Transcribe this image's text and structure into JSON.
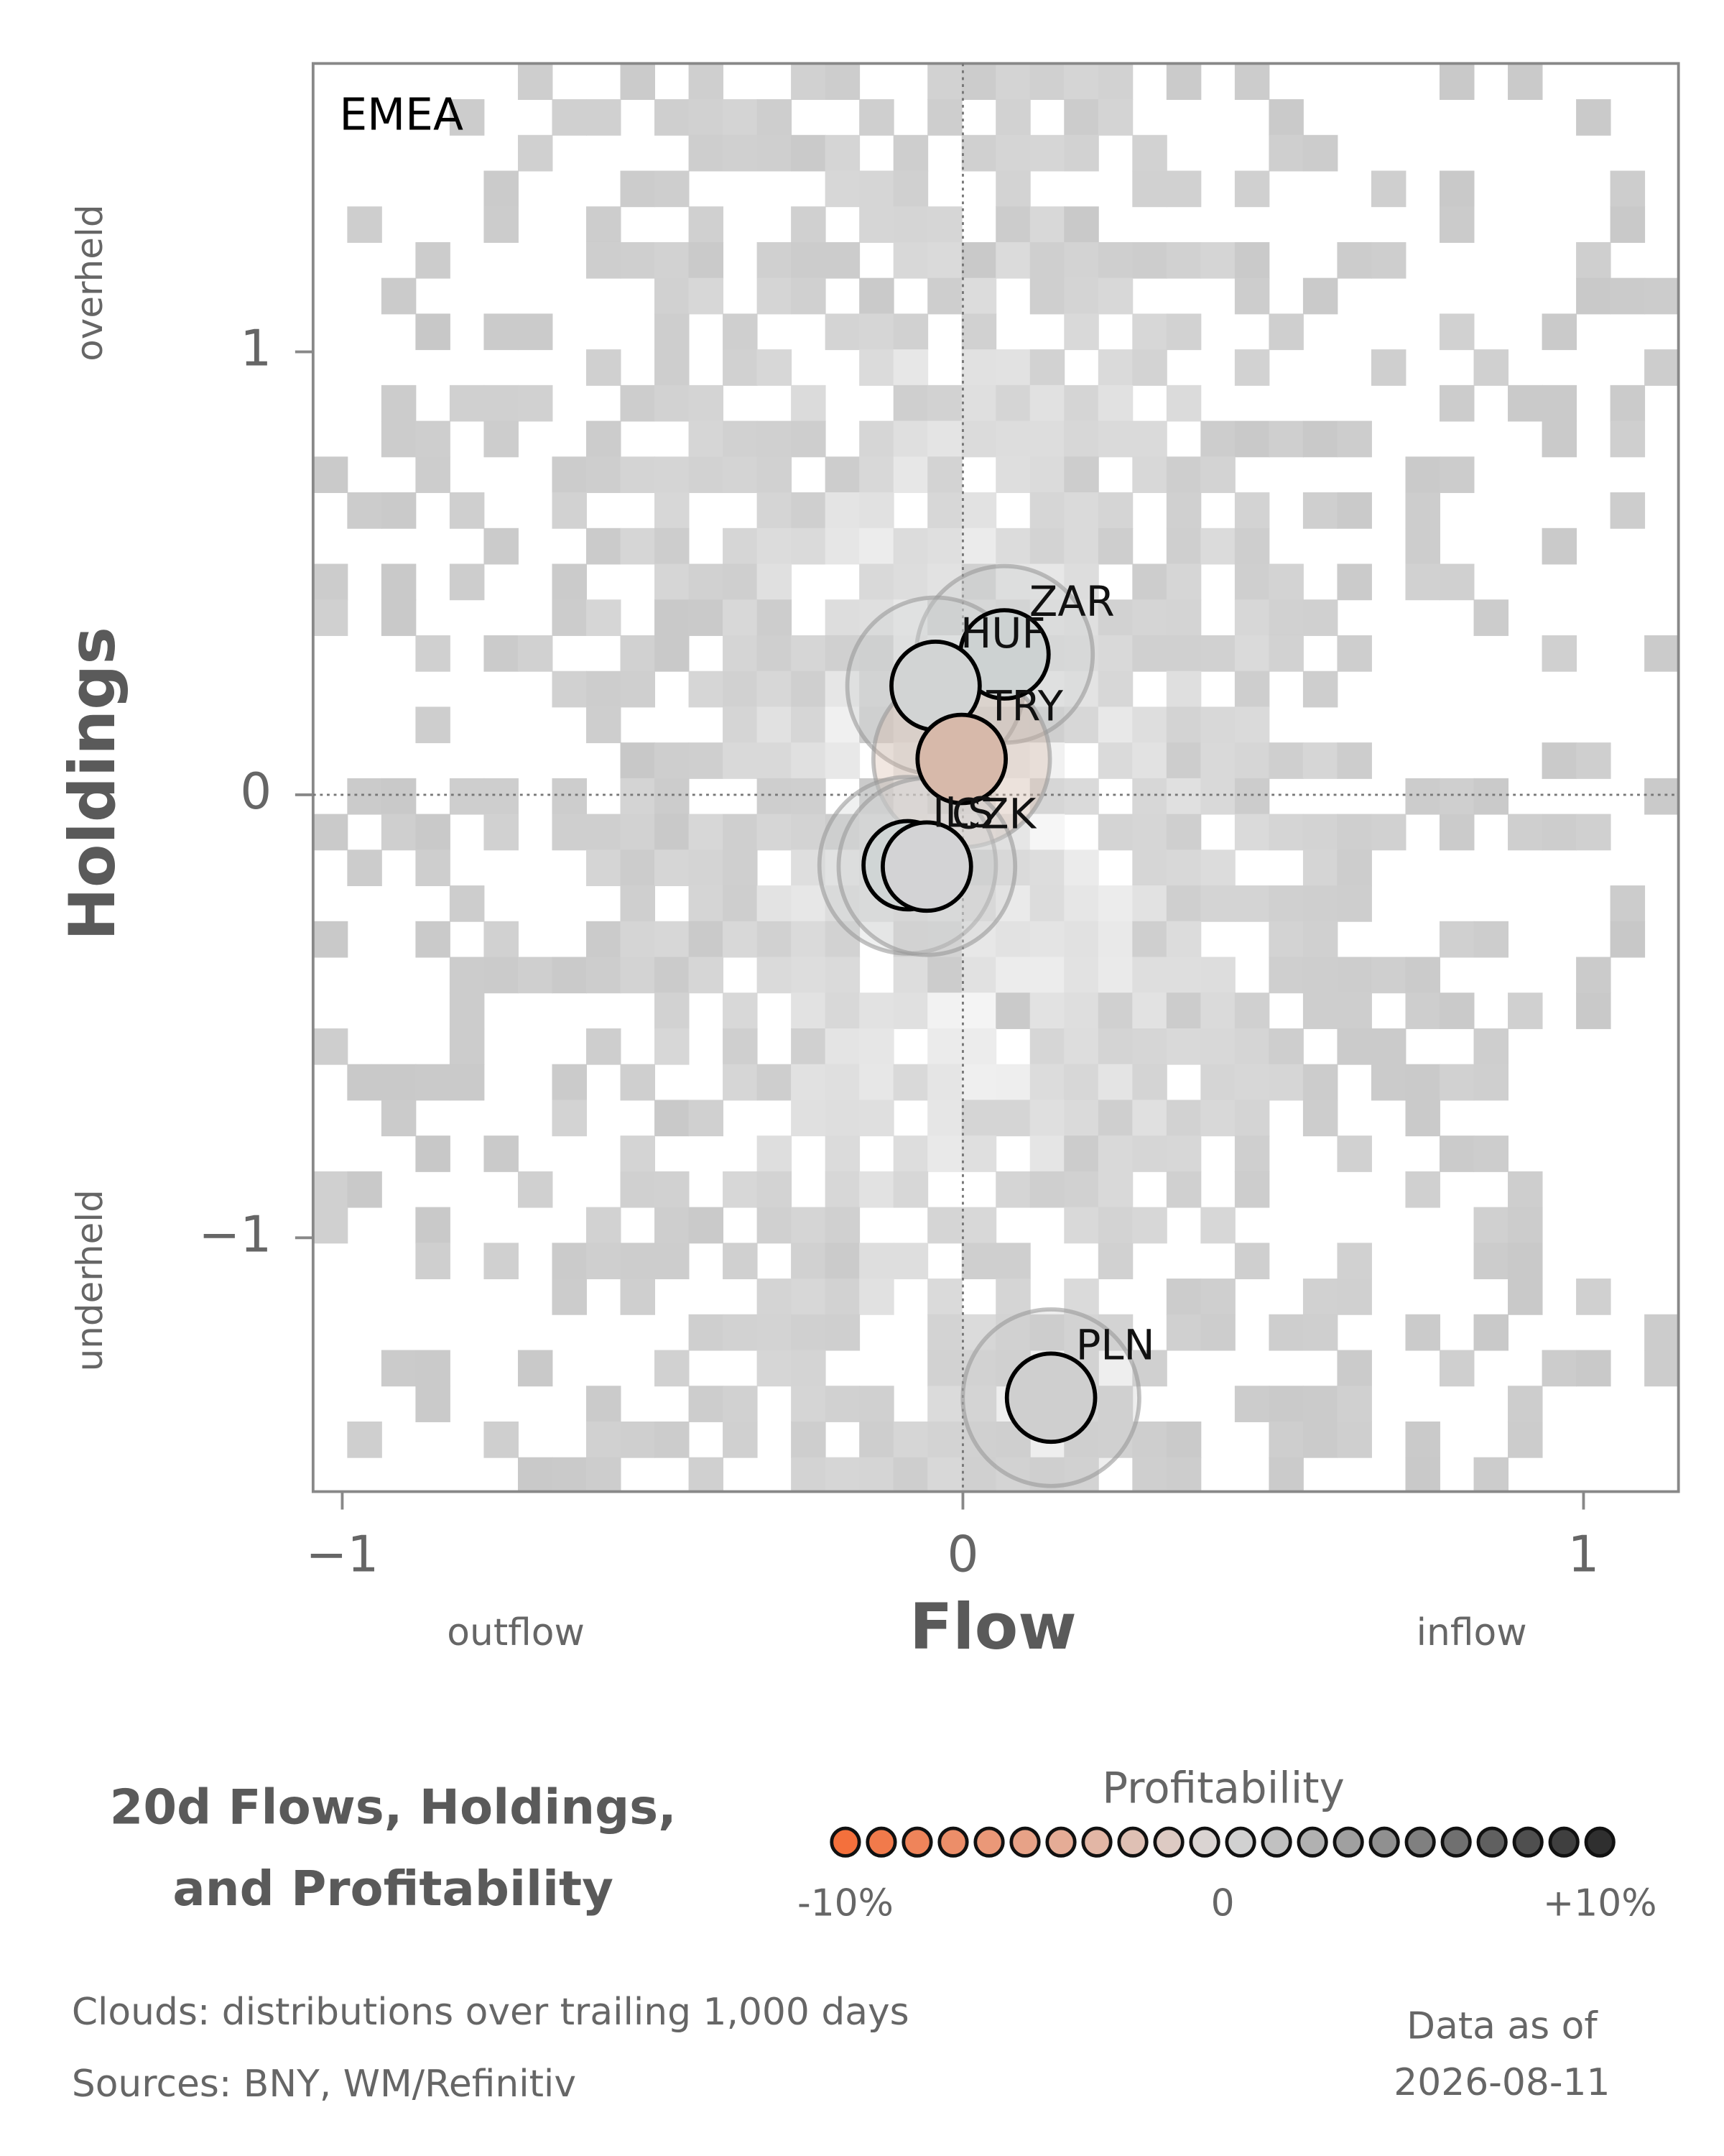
{
  "chart_data": {
    "type": "scatter",
    "panel_label": "EMEA",
    "xlabel": "Flow",
    "ylabel": "Holdings",
    "x_low_label": "outflow",
    "x_high_label": "inflow",
    "y_high_label": "overheld",
    "y_low_label": "underheld",
    "xlim": [
      -1.047,
      1.153
    ],
    "ylim": [
      -1.573,
      1.651
    ],
    "xticks": [
      {
        "value": -1,
        "label": "−1"
      },
      0,
      1
    ],
    "yticks": [
      {
        "value": -1,
        "label": "−1"
      },
      0,
      1
    ],
    "labels": [
      "ZAR",
      "HUF",
      "TRY",
      "ILS",
      "CZK",
      "PLN"
    ],
    "x": [
      0.067,
      -0.044,
      -0.002,
      -0.089,
      -0.058,
      0.142
    ],
    "y": [
      0.317,
      0.246,
      0.081,
      -0.159,
      -0.162,
      -1.361
    ],
    "colors": [
      "#cdd2d2",
      "#d2d4d4",
      "#d7b9aa",
      "#d0d5d5",
      "#d3d3d5",
      "#cfcfcf"
    ],
    "title_lines": [
      "20d Flows, Holdings,",
      "and Profitability"
    ],
    "colorbar": {
      "title": "Profitability",
      "range": [
        -10,
        10
      ],
      "ticks": [
        {
          "value": -10,
          "label": "-10%"
        },
        0,
        {
          "value": 10,
          "label": "+10%"
        }
      ],
      "colors": [
        "#f4703c",
        "#d9d9d9",
        "#2f2f2f"
      ]
    },
    "footnotes": [
      "Clouds:  distributions over trailing 1,000 days",
      "Sources:  BNY, WM/Refinitiv"
    ],
    "asof_lines": [
      "Data as of",
      "2026-08-11"
    ]
  }
}
